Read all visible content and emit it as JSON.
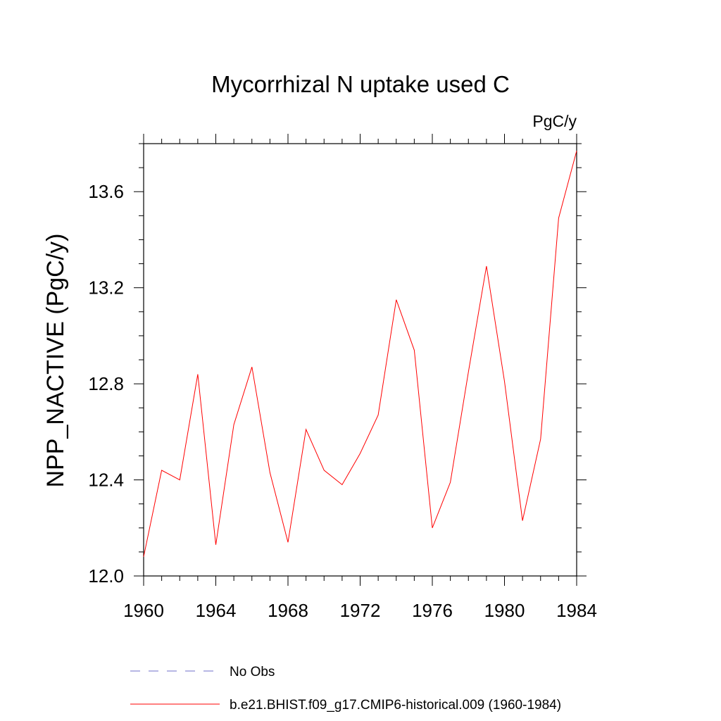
{
  "chart_data": {
    "type": "line",
    "title": "Mycorrhizal N uptake used C",
    "units_label": "PgC/y",
    "xlabel": "",
    "ylabel": "NPP_NACTIVE  (PgC/y)",
    "xlim": [
      1960,
      1984
    ],
    "ylim": [
      12.0,
      13.8
    ],
    "x_ticks": [
      1960,
      1964,
      1968,
      1972,
      1976,
      1980,
      1984
    ],
    "x_tick_labels": [
      "1960",
      "1964",
      "1968",
      "1972",
      "1976",
      "1980",
      "1984"
    ],
    "y_ticks": [
      12.0,
      12.4,
      12.8,
      13.2,
      13.6
    ],
    "y_tick_labels": [
      "12.0",
      "12.4",
      "12.8",
      "13.2",
      "13.6"
    ],
    "grid": false,
    "legend_placement": "bottom",
    "series": [
      {
        "name": "b.e21.BHIST.f09_g17.CMIP6-historical.009 (1960-1984)",
        "color": "#ff0000",
        "style": "solid",
        "x": [
          1960,
          1961,
          1962,
          1963,
          1964,
          1965,
          1966,
          1967,
          1968,
          1969,
          1970,
          1971,
          1972,
          1973,
          1974,
          1975,
          1976,
          1977,
          1978,
          1979,
          1980,
          1981,
          1982,
          1983,
          1984
        ],
        "values": [
          12.08,
          12.44,
          12.4,
          12.84,
          12.13,
          12.63,
          12.87,
          12.43,
          12.14,
          12.61,
          12.44,
          12.38,
          12.51,
          12.67,
          13.15,
          12.94,
          12.2,
          12.39,
          12.85,
          13.29,
          12.81,
          12.23,
          12.57,
          13.49,
          13.77
        ]
      },
      {
        "name": "No Obs",
        "color": "#6f6fc8",
        "style": "dashed",
        "x": [],
        "values": []
      }
    ]
  }
}
